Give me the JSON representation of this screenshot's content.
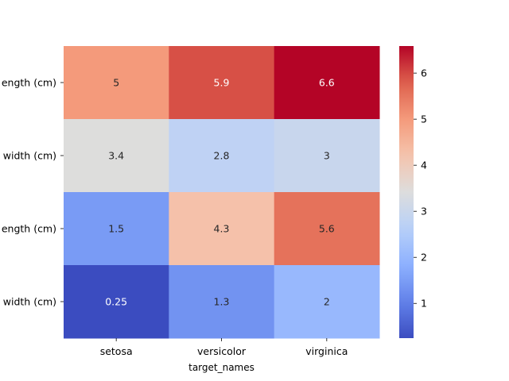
{
  "chart_data": {
    "type": "heatmap",
    "xlabel": "target_names",
    "ylabel": "",
    "x_categories": [
      "setosa",
      "versicolor",
      "virginica"
    ],
    "y_categories": [
      "sepal length (cm)",
      "sepal width (cm)",
      "petal length (cm)",
      "petal width (cm)"
    ],
    "y_tick_labels_visible": [
      "ength (cm)",
      "width (cm)",
      "ength (cm)",
      "width (cm)"
    ],
    "values": [
      [
        5.006,
        5.936,
        6.588
      ],
      [
        3.428,
        2.77,
        2.974
      ],
      [
        1.462,
        4.26,
        5.552
      ],
      [
        0.246,
        1.326,
        2.026
      ]
    ],
    "annotations": [
      [
        "5",
        "5.9",
        "6.6"
      ],
      [
        "3.4",
        "2.8",
        "3"
      ],
      [
        "1.5",
        "4.3",
        "5.6"
      ],
      [
        "0.25",
        "1.3",
        "2"
      ]
    ],
    "colormap": "coolwarm",
    "colorbar": {
      "min": 0.246,
      "max": 6.588,
      "ticks": [
        1,
        2,
        3,
        4,
        5,
        6
      ],
      "tick_labels": [
        "1",
        "2",
        "3",
        "4",
        "5",
        "6"
      ]
    },
    "annotation_colors": {
      "dark": "#262626",
      "light": "#ffffff"
    }
  }
}
